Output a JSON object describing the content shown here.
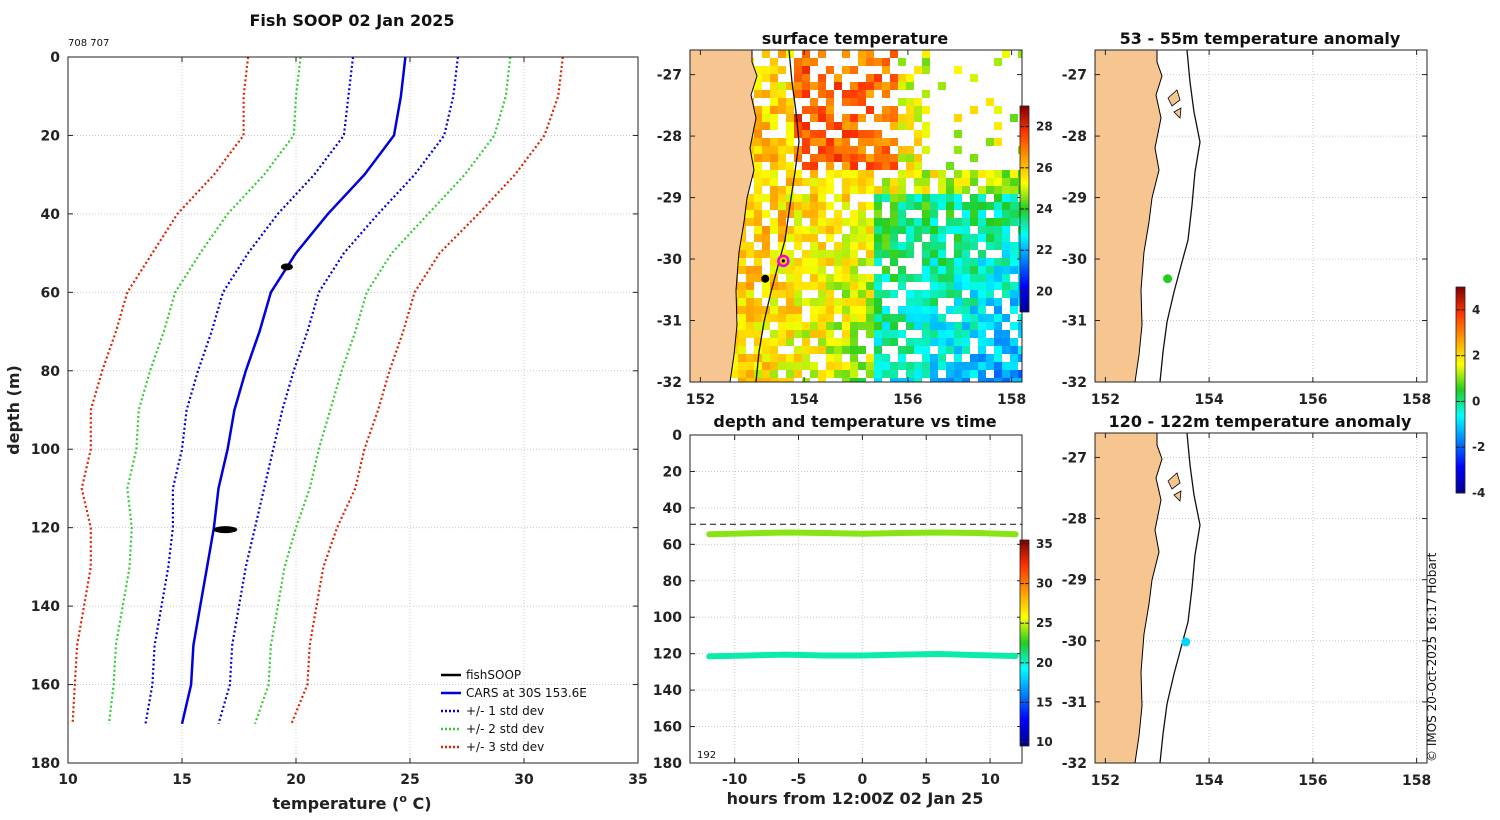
{
  "credit": "© IMOS 20-Oct-2025 16:17 Hobart",
  "colors": {
    "land": "#f7c590",
    "fish": "#000000",
    "cars": "#0000dd",
    "std1": "#0000dd",
    "std2": "#33cc33",
    "std3": "#dd2200",
    "marker": "#ee00ee"
  },
  "chart_data": [
    {
      "id": "profile",
      "type": "line",
      "title": "Fish SOOP 02 Jan 2025",
      "corner_label": "708 707",
      "xlabel": "temperature (",
      "xlabel_sup": "o",
      "xlabel_end": " C)",
      "ylabel": "depth (m)",
      "xlim": [
        10,
        35
      ],
      "ylim": [
        0,
        180
      ],
      "xticks": [
        10,
        15,
        20,
        25,
        30,
        35
      ],
      "yticks": [
        0,
        20,
        40,
        60,
        80,
        100,
        120,
        140,
        160,
        180
      ],
      "depths": [
        0,
        10,
        20,
        30,
        40,
        50,
        60,
        70,
        80,
        90,
        100,
        110,
        120,
        130,
        140,
        150,
        160,
        170
      ],
      "cars_mean": [
        24.8,
        24.6,
        24.3,
        23.0,
        21.4,
        20.0,
        18.9,
        18.4,
        17.8,
        17.3,
        17.0,
        16.6,
        16.4,
        16.1,
        15.8,
        15.5,
        15.4,
        15.0
      ],
      "std": [
        2.3,
        2.3,
        2.2,
        2.2,
        2.2,
        2.1,
        2.1,
        2.1,
        2.1,
        2.1,
        2.0,
        2.0,
        1.8,
        1.7,
        1.7,
        1.7,
        1.7,
        1.6
      ],
      "fish_points": [
        {
          "t": 19.6,
          "d": 53.5
        },
        {
          "t": 16.9,
          "d": 120.5
        }
      ],
      "legend": [
        "fishSOOP",
        "CARS at 30S 153.6E",
        "+/- 1 std dev",
        "+/- 2 std dev",
        "+/- 3 std dev"
      ]
    },
    {
      "id": "sst",
      "type": "heatmap",
      "title": "surface temperature",
      "xlim": [
        151.8,
        158.2
      ],
      "ylim": [
        -32,
        -26.6
      ],
      "xticks": [
        152,
        154,
        156,
        158
      ],
      "yticks": [
        -27,
        -28,
        -29,
        -30,
        -31,
        -32
      ],
      "colorbar": {
        "range": [
          19,
          29
        ],
        "ticks": [
          20,
          22,
          24,
          26,
          28
        ]
      },
      "markers": [
        {
          "lon": 153.6,
          "lat": -30.03
        },
        {
          "lon": 153.25,
          "lat": -30.32
        }
      ]
    },
    {
      "id": "anom_shallow",
      "type": "scatter",
      "title": "53 - 55m temperature anomaly",
      "xlim": [
        151.8,
        158.2
      ],
      "ylim": [
        -32,
        -26.6
      ],
      "xticks": [
        152,
        154,
        156,
        158
      ],
      "yticks": [
        -27,
        -28,
        -29,
        -30,
        -31,
        -32
      ],
      "points": [
        {
          "lon": 153.2,
          "lat": -30.32,
          "anomaly": 0.5
        }
      ]
    },
    {
      "id": "anom_deep",
      "type": "scatter",
      "title": "120 - 122m temperature anomaly",
      "xlim": [
        151.8,
        158.2
      ],
      "ylim": [
        -32,
        -26.6
      ],
      "xticks": [
        152,
        154,
        156,
        158
      ],
      "yticks": [
        -27,
        -28,
        -29,
        -30,
        -31,
        -32
      ],
      "points": [
        {
          "lon": 153.55,
          "lat": -30.02,
          "anomaly": -1.0
        }
      ],
      "colorbar": {
        "range": [
          -4,
          5
        ],
        "ticks": [
          4,
          2,
          0,
          -2,
          -4
        ]
      }
    },
    {
      "id": "timeseries",
      "type": "scatter",
      "title": "depth and temperature vs time",
      "xlabel": "hours from 12:00Z 02 Jan 25",
      "xlim": [
        -13.5,
        12.5
      ],
      "ylim": [
        0,
        180
      ],
      "xticks": [
        -10,
        -5,
        0,
        5,
        10
      ],
      "yticks": [
        0,
        20,
        40,
        60,
        80,
        100,
        120,
        140,
        160,
        180
      ],
      "reference_depth": 49,
      "corner_label": "192",
      "series": [
        {
          "name": "shallow",
          "temperature": 24.0,
          "hours": [
            -12,
            -9,
            -6,
            -3,
            0,
            3,
            6,
            9,
            12
          ],
          "depths": [
            54.5,
            54,
            53.5,
            53.8,
            54.2,
            53.8,
            53.5,
            53.8,
            54.5
          ]
        },
        {
          "name": "deep",
          "temperature": 20.5,
          "hours": [
            -12,
            -9,
            -6,
            -3,
            0,
            3,
            6,
            9,
            12
          ],
          "depths": [
            121.5,
            121,
            120.5,
            121,
            121,
            120.5,
            120.2,
            120.8,
            121.3
          ]
        }
      ],
      "colorbar": {
        "range": [
          9.5,
          35.5
        ],
        "ticks": [
          35,
          30,
          25,
          20,
          15,
          10
        ]
      }
    }
  ]
}
